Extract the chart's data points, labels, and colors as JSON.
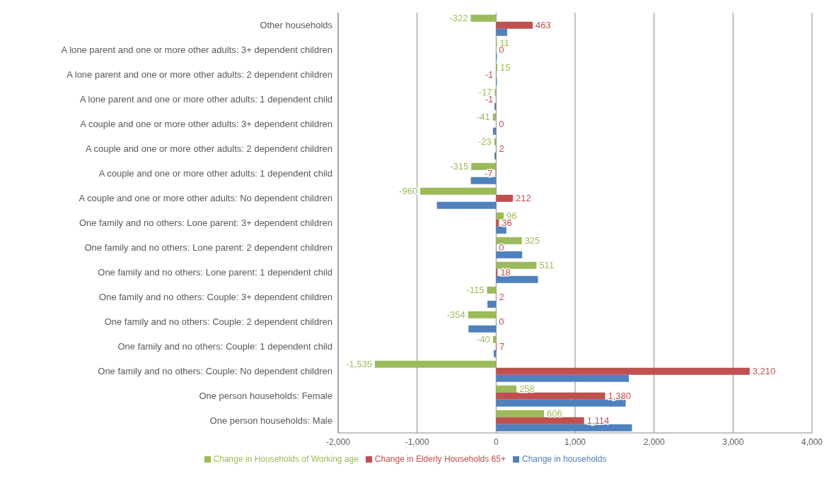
{
  "chart_data": {
    "type": "bar",
    "orientation": "horizontal",
    "categories": [
      "Other households",
      "A lone parent and one or more other adults: 3+ dependent children",
      "A lone parent and one or more other adults: 2 dependent children",
      "A lone parent and one or more other adults: 1 dependent child",
      "A couple and one or more other adults: 3+ dependent children",
      "A couple and one or more other adults: 2 dependent children",
      "A couple and one or more other adults: 1 dependent child",
      "A couple and one or more other adults: No dependent children",
      "One family and no others: Lone parent: 3+ dependent children",
      "One family and no others: Lone parent: 2 dependent children",
      "One family and no others: Lone parent: 1 dependent child",
      "One family and no others: Couple: 3+ dependent children",
      "One family and no others: Couple: 2 dependent children",
      "One family and no others: Couple: 1 dependent child",
      "One family and no others: Couple: No dependent children",
      "One person households: Female",
      "One person households: Male"
    ],
    "series": [
      {
        "name": "Change in Households of Working age",
        "color": "#9bbb59",
        "values": [
          -322,
          11,
          15,
          -17,
          -41,
          -23,
          -315,
          -960,
          96,
          325,
          511,
          -115,
          -354,
          -40,
          -1535,
          258,
          606
        ],
        "value_labels": [
          "-322",
          "11",
          "15",
          "-17",
          "-41",
          "-23",
          "-315",
          "-960",
          "96",
          "325",
          "511",
          "-115",
          "-354",
          "-40",
          "-1,535",
          "258",
          "606"
        ]
      },
      {
        "name": "Change in Elderly Households 65+",
        "color": "#c0504d",
        "values": [
          463,
          0,
          -1,
          -1,
          0,
          2,
          -7,
          212,
          36,
          0,
          18,
          2,
          0,
          7,
          3210,
          1380,
          1114
        ],
        "value_labels": [
          "463",
          "0",
          "-1",
          "-1",
          "0",
          "2",
          "-7",
          "212",
          "36",
          "0",
          "18",
          "2",
          "0",
          "7",
          "3,210",
          "1,380",
          "1,114"
        ]
      },
      {
        "name": "Change in households",
        "color": "#4f81bd",
        "values": [
          140,
          10,
          10,
          -20,
          -40,
          -20,
          -320,
          -750,
          130,
          330,
          530,
          -110,
          -350,
          -30,
          1680,
          1640,
          1720
        ]
      }
    ],
    "xlim": [
      -2000,
      4000
    ],
    "xticks": [
      {
        "value": -2000,
        "label": "-2,000"
      },
      {
        "value": -1000,
        "label": "-1,000"
      },
      0,
      {
        "value": 1000,
        "label": "1,000"
      },
      {
        "value": 2000,
        "label": "2,000"
      },
      {
        "value": 3000,
        "label": "3,000"
      },
      {
        "value": 4000,
        "label": "4,000"
      }
    ],
    "grid": "x",
    "legend": "bottom"
  }
}
